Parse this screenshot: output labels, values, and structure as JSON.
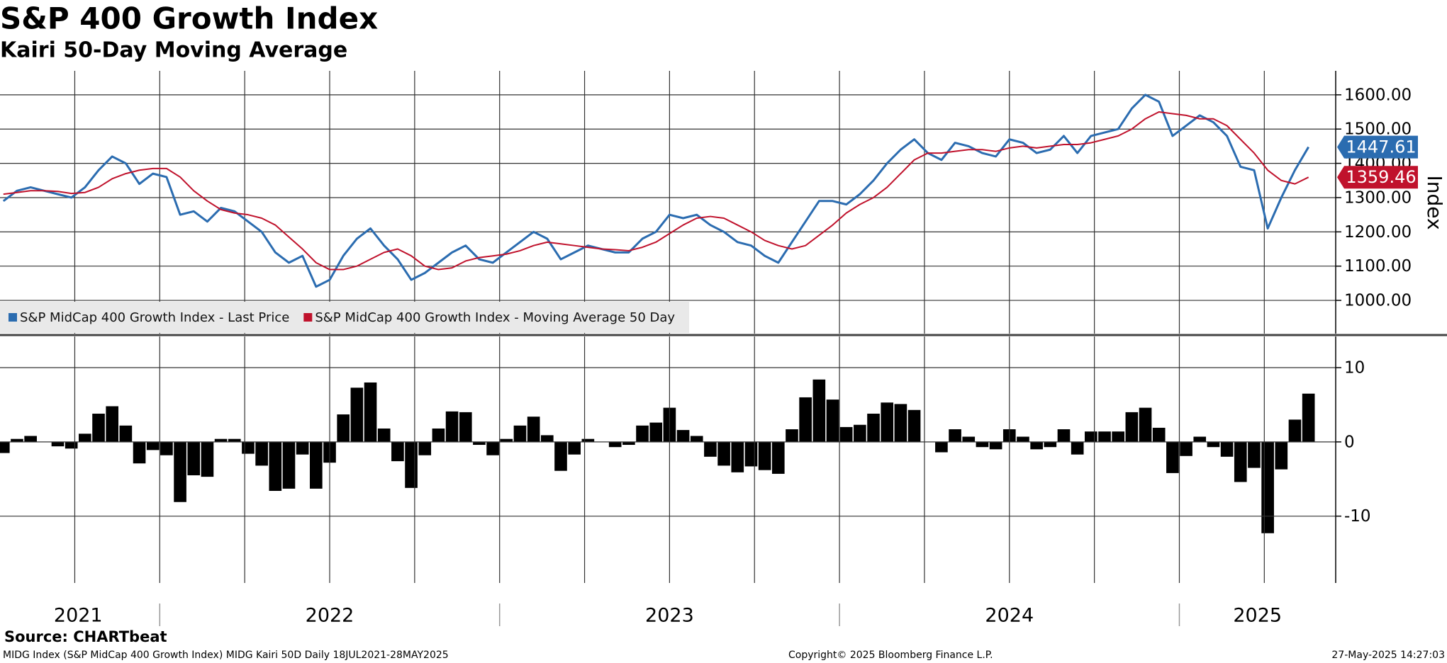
{
  "chart_data": [
    {
      "type": "line",
      "title": "S&P 400 Growth Index",
      "subtitle": "Kairi 50-Day Moving Average",
      "y_label": "Index",
      "xlim": [
        2021.53,
        2025.46
      ],
      "xgrid": [
        2021.75,
        2022.0,
        2022.25,
        2022.5,
        2022.75,
        2023.0,
        2023.25,
        2023.5,
        2023.75,
        2024.0,
        2024.25,
        2024.5,
        2024.75,
        2025.0,
        2025.25
      ],
      "ylim": [
        903,
        1670
      ],
      "yticks": [
        {
          "value": 1000,
          "label": "1000.00"
        },
        {
          "value": 1100,
          "label": "1100.00"
        },
        {
          "value": 1200,
          "label": "1200.00"
        },
        {
          "value": 1300,
          "label": "1300.00"
        },
        {
          "value": 1400,
          "label": "1400.00"
        },
        {
          "value": 1500,
          "label": "1500.00"
        },
        {
          "value": 1600,
          "label": "1600.00"
        }
      ],
      "grid": true,
      "legend": "bottom-left",
      "x": [
        2021.54,
        2021.58,
        2021.62,
        2021.66,
        2021.7,
        2021.74,
        2021.78,
        2021.82,
        2021.86,
        2021.9,
        2021.94,
        2021.98,
        2022.02,
        2022.06,
        2022.1,
        2022.14,
        2022.18,
        2022.22,
        2022.26,
        2022.3,
        2022.34,
        2022.38,
        2022.42,
        2022.46,
        2022.5,
        2022.54,
        2022.58,
        2022.62,
        2022.66,
        2022.7,
        2022.74,
        2022.78,
        2022.82,
        2022.86,
        2022.9,
        2022.94,
        2022.98,
        2023.02,
        2023.06,
        2023.1,
        2023.14,
        2023.18,
        2023.22,
        2023.26,
        2023.3,
        2023.34,
        2023.38,
        2023.42,
        2023.46,
        2023.5,
        2023.54,
        2023.58,
        2023.62,
        2023.66,
        2023.7,
        2023.74,
        2023.78,
        2023.82,
        2023.86,
        2023.9,
        2023.94,
        2023.98,
        2024.02,
        2024.06,
        2024.1,
        2024.14,
        2024.18,
        2024.22,
        2024.26,
        2024.3,
        2024.34,
        2024.38,
        2024.42,
        2024.46,
        2024.5,
        2024.54,
        2024.58,
        2024.62,
        2024.66,
        2024.7,
        2024.74,
        2024.78,
        2024.82,
        2024.86,
        2024.9,
        2024.94,
        2024.98,
        2025.02,
        2025.06,
        2025.1,
        2025.14,
        2025.18,
        2025.22,
        2025.26,
        2025.3,
        2025.34,
        2025.38
      ],
      "series": [
        {
          "name": "S&P MidCap 400 Growth Index - Last Price",
          "color": "#2b6cb0",
          "values": [
            1290,
            1320,
            1330,
            1320,
            1310,
            1300,
            1330,
            1380,
            1420,
            1400,
            1340,
            1370,
            1360,
            1250,
            1260,
            1230,
            1270,
            1260,
            1230,
            1200,
            1140,
            1110,
            1130,
            1040,
            1060,
            1130,
            1180,
            1210,
            1160,
            1120,
            1060,
            1080,
            1110,
            1140,
            1160,
            1120,
            1110,
            1140,
            1170,
            1200,
            1180,
            1120,
            1140,
            1160,
            1150,
            1140,
            1140,
            1180,
            1200,
            1250,
            1240,
            1250,
            1220,
            1200,
            1170,
            1160,
            1130,
            1110,
            1170,
            1230,
            1290,
            1290,
            1280,
            1310,
            1350,
            1400,
            1440,
            1470,
            1430,
            1410,
            1460,
            1450,
            1430,
            1420,
            1470,
            1460,
            1430,
            1440,
            1480,
            1430,
            1480,
            1490,
            1500,
            1560,
            1600,
            1580,
            1480,
            1510,
            1540,
            1520,
            1480,
            1390,
            1380,
            1210,
            1300,
            1380,
            1447.61
          ]
        },
        {
          "name": "S&P MidCap 400 Growth Index - Moving Average 50 Day",
          "color": "#c0122c",
          "values": [
            1310,
            1315,
            1320,
            1320,
            1318,
            1312,
            1315,
            1330,
            1355,
            1370,
            1380,
            1385,
            1385,
            1360,
            1320,
            1290,
            1265,
            1255,
            1250,
            1240,
            1220,
            1185,
            1150,
            1110,
            1090,
            1090,
            1100,
            1120,
            1140,
            1150,
            1130,
            1100,
            1090,
            1095,
            1115,
            1125,
            1130,
            1135,
            1145,
            1160,
            1170,
            1165,
            1160,
            1155,
            1150,
            1148,
            1145,
            1155,
            1170,
            1195,
            1220,
            1240,
            1245,
            1240,
            1220,
            1200,
            1175,
            1160,
            1150,
            1160,
            1190,
            1220,
            1255,
            1280,
            1300,
            1330,
            1370,
            1410,
            1430,
            1430,
            1435,
            1440,
            1440,
            1435,
            1445,
            1450,
            1445,
            1450,
            1455,
            1455,
            1460,
            1470,
            1480,
            1500,
            1530,
            1550,
            1545,
            1540,
            1530,
            1530,
            1510,
            1470,
            1430,
            1380,
            1350,
            1340,
            1359.46
          ]
        }
      ]
    },
    {
      "type": "bar",
      "xlim": [
        2021.53,
        2025.46
      ],
      "xgrid": [
        2021.75,
        2022.0,
        2022.25,
        2022.5,
        2022.75,
        2023.0,
        2023.25,
        2023.5,
        2023.75,
        2024.0,
        2024.25,
        2024.5,
        2024.75,
        2025.0,
        2025.25
      ],
      "xseparators": [
        2022,
        2023,
        2024,
        2025
      ],
      "xticks": [
        {
          "value": 2021.76,
          "label": "2021"
        },
        {
          "value": 2022.5,
          "label": "2022"
        },
        {
          "value": 2023.5,
          "label": "2023"
        },
        {
          "value": 2024.5,
          "label": "2024"
        },
        {
          "value": 2025.23,
          "label": "2025"
        }
      ],
      "ylim": [
        -19,
        14.2
      ],
      "yticks": [
        -10,
        0,
        10
      ],
      "grid": true,
      "color": "#000000",
      "x": [
        2021.54,
        2021.58,
        2021.62,
        2021.66,
        2021.7,
        2021.74,
        2021.78,
        2021.82,
        2021.86,
        2021.9,
        2021.94,
        2021.98,
        2022.02,
        2022.06,
        2022.1,
        2022.14,
        2022.18,
        2022.22,
        2022.26,
        2022.3,
        2022.34,
        2022.38,
        2022.42,
        2022.46,
        2022.5,
        2022.54,
        2022.58,
        2022.62,
        2022.66,
        2022.7,
        2022.74,
        2022.78,
        2022.82,
        2022.86,
        2022.9,
        2022.94,
        2022.98,
        2023.02,
        2023.06,
        2023.1,
        2023.14,
        2023.18,
        2023.22,
        2023.26,
        2023.3,
        2023.34,
        2023.38,
        2023.42,
        2023.46,
        2023.5,
        2023.54,
        2023.58,
        2023.62,
        2023.66,
        2023.7,
        2023.74,
        2023.78,
        2023.82,
        2023.86,
        2023.9,
        2023.94,
        2023.98,
        2024.02,
        2024.06,
        2024.1,
        2024.14,
        2024.18,
        2024.22,
        2024.26,
        2024.3,
        2024.34,
        2024.38,
        2024.42,
        2024.46,
        2024.5,
        2024.54,
        2024.58,
        2024.62,
        2024.66,
        2024.7,
        2024.74,
        2024.78,
        2024.82,
        2024.86,
        2024.9,
        2024.94,
        2024.98,
        2025.02,
        2025.06,
        2025.1,
        2025.14,
        2025.18,
        2025.22,
        2025.26,
        2025.3,
        2025.34,
        2025.38
      ],
      "values": [
        -1.5,
        0.4,
        0.8,
        0,
        -0.6,
        -0.9,
        1.1,
        3.8,
        4.8,
        2.2,
        -2.9,
        -1.1,
        -1.8,
        -8.1,
        -4.5,
        -4.7,
        0.4,
        0.4,
        -1.6,
        -3.2,
        -6.6,
        -6.3,
        -1.7,
        -6.3,
        -2.8,
        3.7,
        7.3,
        8.0,
        1.8,
        -2.6,
        -6.2,
        -1.8,
        1.8,
        4.1,
        4.0,
        -0.4,
        -1.8,
        0.4,
        2.2,
        3.4,
        0.9,
        -3.9,
        -1.7,
        0.4,
        0,
        -0.7,
        -0.4,
        2.2,
        2.6,
        4.6,
        1.6,
        0.8,
        -2.0,
        -3.2,
        -4.1,
        -3.3,
        -3.8,
        -4.3,
        1.7,
        6.0,
        8.4,
        5.7,
        2.0,
        2.3,
        3.8,
        5.3,
        5.1,
        4.3,
        0,
        -1.4,
        1.7,
        0.7,
        -0.7,
        -1.0,
        1.7,
        0.7,
        -1.0,
        -0.7,
        1.7,
        -1.7,
        1.4,
        1.4,
        1.4,
        4.0,
        4.6,
        1.9,
        -4.2,
        -1.9,
        0.7,
        -0.7,
        -2.0,
        -5.4,
        -3.5,
        -12.3,
        -3.7,
        3.0,
        6.5
      ]
    }
  ],
  "footer": {
    "source": "Source: CHARTbeat",
    "description": "MIDG Index (S&P MidCap 400 Growth Index) MIDG Kairi 50D  Daily 18JUL2021-28MAY2025",
    "copyright": "Copyright© 2025 Bloomberg Finance L.P.",
    "timestamp": "27-May-2025 14:27:03"
  }
}
